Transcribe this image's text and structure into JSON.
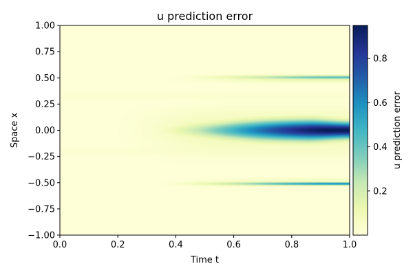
{
  "chart_data": {
    "type": "heatmap",
    "title": "u prediction error",
    "xlabel": "Time t",
    "ylabel": "Space x",
    "xlim": [
      0.0,
      1.0
    ],
    "ylim": [
      -1.0,
      1.0
    ],
    "xticks": [
      "0.0",
      "0.2",
      "0.4",
      "0.6",
      "0.8",
      "1.0"
    ],
    "yticks": [
      "1.00",
      "0.75",
      "0.50",
      "0.25",
      "0.00",
      "−0.25",
      "−0.50",
      "−0.75",
      "−1.00"
    ],
    "colorbar": {
      "label": "u prediction error",
      "ticks": [
        "0.8",
        "0.6",
        "0.4",
        "0.2"
      ],
      "tick_values": [
        0.8,
        0.6,
        0.4,
        0.2
      ],
      "range": [
        0.0,
        0.95
      ],
      "colormap": "YlGnBu"
    },
    "features": [
      {
        "name": "central band",
        "x_center": 0.0,
        "t_start": 0.25,
        "peak_error": 0.95,
        "peak_t": 0.9
      },
      {
        "name": "upper streak",
        "x_center": 0.5,
        "t_start": 0.35,
        "peak_error": 0.45
      },
      {
        "name": "lower streak",
        "x_center": -0.5,
        "t_start": 0.3,
        "peak_error": 0.6
      }
    ]
  }
}
